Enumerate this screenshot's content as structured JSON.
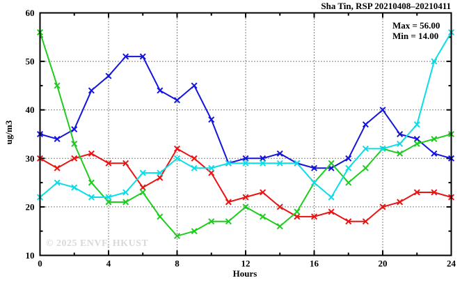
{
  "chart_data": {
    "type": "line",
    "title": "Sha Tin, RSP 20210408–20210411",
    "xlabel": "Hours",
    "ylabel": "ug/m3",
    "xlim": [
      0,
      24
    ],
    "ylim": [
      10,
      60
    ],
    "grid": true,
    "x_major_ticks": [
      0,
      4,
      8,
      12,
      16,
      20,
      24
    ],
    "x_minor_ticks": [
      2,
      6,
      10,
      14,
      18,
      22
    ],
    "y_major_ticks": [
      10,
      20,
      30,
      40,
      50,
      60
    ],
    "y_minor_ticks": [
      15,
      25,
      35,
      45,
      55
    ],
    "annotations": {
      "max_label": "Max = 56.00",
      "min_label": "Min = 14.00"
    },
    "watermark": "© 2025 ENVF, HKUST",
    "x": [
      0,
      1,
      2,
      3,
      4,
      5,
      6,
      7,
      8,
      9,
      10,
      11,
      12,
      13,
      14,
      15,
      16,
      17,
      18,
      19,
      20,
      21,
      22,
      23,
      24
    ],
    "series": [
      {
        "name": "blue",
        "color": "#1414dc",
        "values": [
          35,
          34,
          36,
          44,
          47,
          51,
          51,
          44,
          42,
          45,
          38,
          29,
          30,
          30,
          31,
          29,
          28,
          28,
          30,
          37,
          40,
          35,
          34,
          31,
          30
        ]
      },
      {
        "name": "red",
        "color": "#e81414",
        "values": [
          30,
          28,
          30,
          31,
          29,
          29,
          24,
          26,
          32,
          30,
          27,
          21,
          22,
          23,
          20,
          18,
          18,
          19,
          17,
          17,
          20,
          21,
          23,
          23,
          22
        ]
      },
      {
        "name": "green",
        "color": "#1ecc1e",
        "values": [
          56,
          45,
          33,
          25,
          21,
          21,
          23,
          18,
          14,
          15,
          17,
          17,
          20,
          18,
          16,
          19,
          25,
          29,
          25,
          28,
          32,
          31,
          33,
          34,
          35
        ]
      },
      {
        "name": "cyan",
        "color": "#0bdde6",
        "values": [
          22,
          25,
          24,
          22,
          22,
          23,
          27,
          27,
          30,
          28,
          28,
          29,
          29,
          29,
          29,
          29,
          25,
          22,
          28,
          32,
          32,
          33,
          37,
          50,
          56
        ]
      }
    ]
  }
}
